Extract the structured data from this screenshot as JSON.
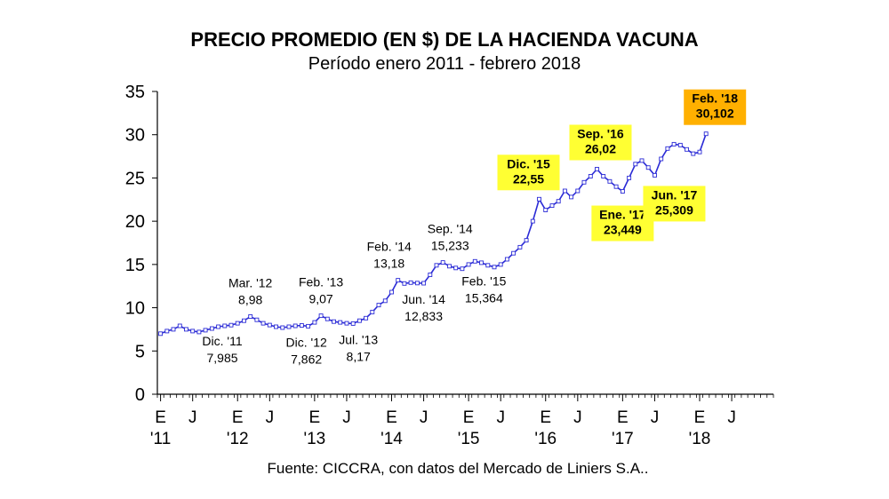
{
  "header": {
    "title": "PRECIO PROMEDIO (EN $) DE LA HACIENDA VACUNA",
    "subtitle": "Período enero 2011 - febrero 2018"
  },
  "footer": {
    "source": "Fuente: CICCRA, con datos del Mercado de Liniers S.A.."
  },
  "colors": {
    "line": "#2b2bd6",
    "highlight_yellow": "#ffff33",
    "highlight_orange": "#ffb000",
    "axis": "#000000"
  },
  "chart_data": {
    "type": "line",
    "title": "PRECIO PROMEDIO (EN $) DE LA HACIENDA VACUNA",
    "subtitle": "Período enero 2011 - febrero 2018",
    "ylim": [
      0,
      35
    ],
    "yticks": [
      0,
      5,
      10,
      15,
      20,
      25,
      30,
      35
    ],
    "x_month_range": [
      "2011-01",
      "2018-12"
    ],
    "x_ticks": [
      {
        "month": "2011-01",
        "label": "E",
        "year": "'11"
      },
      {
        "month": "2011-06",
        "label": "J",
        "year": ""
      },
      {
        "month": "2012-01",
        "label": "E",
        "year": "'12"
      },
      {
        "month": "2012-06",
        "label": "J",
        "year": ""
      },
      {
        "month": "2013-01",
        "label": "E",
        "year": "'13"
      },
      {
        "month": "2013-06",
        "label": "J",
        "year": ""
      },
      {
        "month": "2014-01",
        "label": "E",
        "year": "'14"
      },
      {
        "month": "2014-06",
        "label": "J",
        "year": ""
      },
      {
        "month": "2015-01",
        "label": "E",
        "year": "'15"
      },
      {
        "month": "2015-06",
        "label": "J",
        "year": ""
      },
      {
        "month": "2016-01",
        "label": "E",
        "year": "'16"
      },
      {
        "month": "2016-06",
        "label": "J",
        "year": ""
      },
      {
        "month": "2017-01",
        "label": "E",
        "year": "'17"
      },
      {
        "month": "2017-06",
        "label": "J",
        "year": ""
      },
      {
        "month": "2018-01",
        "label": "E",
        "year": "'18"
      },
      {
        "month": "2018-06",
        "label": "J",
        "year": ""
      }
    ],
    "grid": false,
    "legend": "none",
    "series": [
      {
        "points": [
          [
            "2011-01",
            7.0
          ],
          [
            "2011-02",
            7.3
          ],
          [
            "2011-03",
            7.5
          ],
          [
            "2011-04",
            7.9
          ],
          [
            "2011-05",
            7.5
          ],
          [
            "2011-06",
            7.3
          ],
          [
            "2011-07",
            7.2
          ],
          [
            "2011-08",
            7.4
          ],
          [
            "2011-09",
            7.6
          ],
          [
            "2011-10",
            7.8
          ],
          [
            "2011-11",
            7.9
          ],
          [
            "2011-12",
            7.985
          ],
          [
            "2012-01",
            8.2
          ],
          [
            "2012-02",
            8.5
          ],
          [
            "2012-03",
            8.98
          ],
          [
            "2012-04",
            8.6
          ],
          [
            "2012-05",
            8.2
          ],
          [
            "2012-06",
            8.0
          ],
          [
            "2012-07",
            7.8
          ],
          [
            "2012-08",
            7.7
          ],
          [
            "2012-09",
            7.8
          ],
          [
            "2012-10",
            7.9
          ],
          [
            "2012-11",
            7.95
          ],
          [
            "2012-12",
            7.862
          ],
          [
            "2013-01",
            8.3
          ],
          [
            "2013-02",
            9.07
          ],
          [
            "2013-03",
            8.7
          ],
          [
            "2013-04",
            8.4
          ],
          [
            "2013-05",
            8.3
          ],
          [
            "2013-06",
            8.2
          ],
          [
            "2013-07",
            8.17
          ],
          [
            "2013-08",
            8.5
          ],
          [
            "2013-09",
            8.8
          ],
          [
            "2013-10",
            9.5
          ],
          [
            "2013-11",
            10.3
          ],
          [
            "2013-12",
            10.8
          ],
          [
            "2014-01",
            11.8
          ],
          [
            "2014-02",
            13.18
          ],
          [
            "2014-03",
            12.8
          ],
          [
            "2014-04",
            12.9
          ],
          [
            "2014-05",
            12.85
          ],
          [
            "2014-06",
            12.833
          ],
          [
            "2014-07",
            13.8
          ],
          [
            "2014-08",
            14.9
          ],
          [
            "2014-09",
            15.233
          ],
          [
            "2014-10",
            14.8
          ],
          [
            "2014-11",
            14.6
          ],
          [
            "2014-12",
            14.5
          ],
          [
            "2015-01",
            15.0
          ],
          [
            "2015-02",
            15.364
          ],
          [
            "2015-03",
            15.2
          ],
          [
            "2015-04",
            14.9
          ],
          [
            "2015-05",
            14.7
          ],
          [
            "2015-06",
            15.0
          ],
          [
            "2015-07",
            15.6
          ],
          [
            "2015-08",
            16.3
          ],
          [
            "2015-09",
            17.0
          ],
          [
            "2015-10",
            17.8
          ],
          [
            "2015-11",
            20.0
          ],
          [
            "2015-12",
            22.55
          ],
          [
            "2016-01",
            21.3
          ],
          [
            "2016-02",
            21.8
          ],
          [
            "2016-03",
            22.3
          ],
          [
            "2016-04",
            23.5
          ],
          [
            "2016-05",
            22.8
          ],
          [
            "2016-06",
            23.5
          ],
          [
            "2016-07",
            24.5
          ],
          [
            "2016-08",
            25.2
          ],
          [
            "2016-09",
            26.02
          ],
          [
            "2016-10",
            25.2
          ],
          [
            "2016-11",
            24.6
          ],
          [
            "2016-12",
            24.0
          ],
          [
            "2017-01",
            23.449
          ],
          [
            "2017-02",
            25.0
          ],
          [
            "2017-03",
            26.6
          ],
          [
            "2017-04",
            27.0
          ],
          [
            "2017-05",
            26.2
          ],
          [
            "2017-06",
            25.309
          ],
          [
            "2017-07",
            27.2
          ],
          [
            "2017-08",
            28.4
          ],
          [
            "2017-09",
            28.9
          ],
          [
            "2017-10",
            28.8
          ],
          [
            "2017-11",
            28.3
          ],
          [
            "2017-12",
            27.8
          ],
          [
            "2018-01",
            28.0
          ],
          [
            "2018-02",
            30.102
          ]
        ]
      }
    ],
    "annotations": [
      {
        "month": "2011-12",
        "label": "Dic. '11",
        "value": "7,985",
        "style": "plain",
        "pos": "below"
      },
      {
        "month": "2012-03",
        "label": "Mar. '12",
        "value": "8,98",
        "style": "plain",
        "pos": "above"
      },
      {
        "month": "2013-02",
        "label": "Feb. '13",
        "value": "9,07",
        "style": "plain",
        "pos": "above"
      },
      {
        "month": "2012-12",
        "label": "Dic. '12",
        "value": "7,862",
        "style": "plain",
        "pos": "below"
      },
      {
        "month": "2013-07",
        "label": "Jul. '13",
        "value": "8,17",
        "style": "plain",
        "pos": "below"
      },
      {
        "month": "2014-02",
        "label": "Feb. '14",
        "value": "13,18",
        "style": "plain",
        "pos": "above"
      },
      {
        "month": "2014-06",
        "label": "Jun. '14",
        "value": "12,833",
        "style": "plain",
        "pos": "below"
      },
      {
        "month": "2014-09",
        "label": "Sep. '14",
        "value": "15,233",
        "style": "plain",
        "pos": "above"
      },
      {
        "month": "2015-02",
        "label": "Feb. '15",
        "value": "15,364",
        "style": "plain",
        "pos": "below"
      },
      {
        "month": "2015-12",
        "label": "Dic. '15",
        "value": "22,55",
        "style": "yellow",
        "pos": "above"
      },
      {
        "month": "2016-09",
        "label": "Sep. '16",
        "value": "26,02",
        "style": "yellow",
        "pos": "above"
      },
      {
        "month": "2017-01",
        "label": "Ene. '17",
        "value": "23,449",
        "style": "yellow",
        "pos": "below"
      },
      {
        "month": "2017-06",
        "label": "Jun. '17",
        "value": "25,309",
        "style": "yellow",
        "pos": "below"
      },
      {
        "month": "2018-02",
        "label": "Feb. '18",
        "value": "30,102",
        "style": "orange",
        "pos": "above"
      }
    ]
  }
}
